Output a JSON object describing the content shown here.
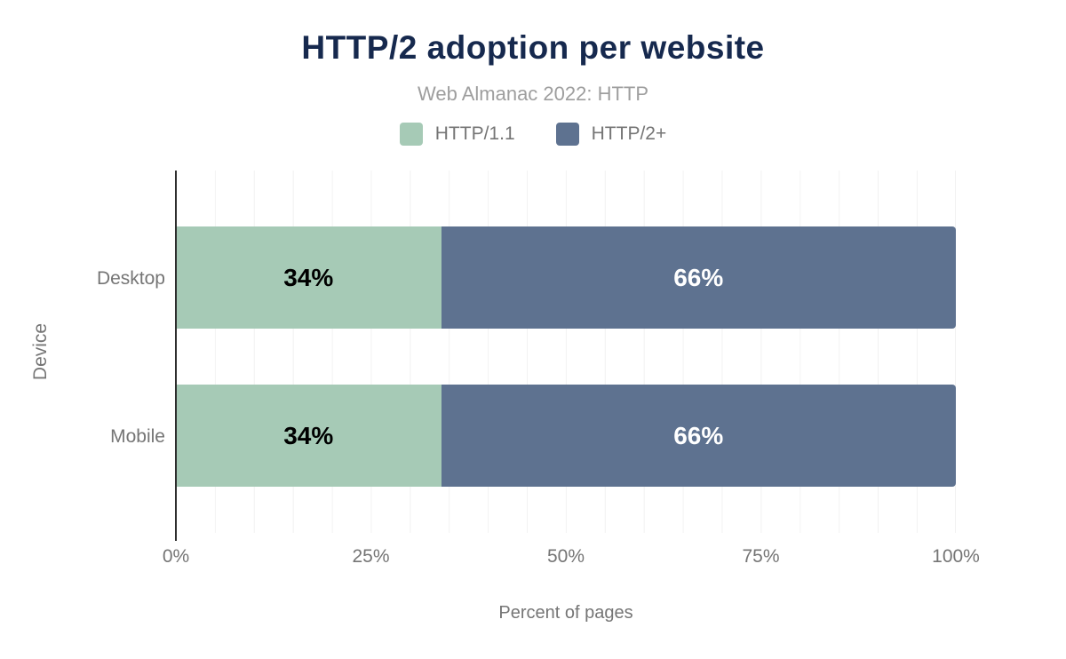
{
  "chart_data": {
    "type": "bar",
    "orientation": "horizontal",
    "stacked": true,
    "title": "HTTP/2 adoption per website",
    "subtitle": "Web Almanac 2022: HTTP",
    "categories": [
      "Desktop",
      "Mobile"
    ],
    "series": [
      {
        "name": "HTTP/1.1",
        "color": "#a6cab6",
        "label_color": "#000000",
        "values": [
          34,
          34
        ]
      },
      {
        "name": "HTTP/2+",
        "color": "#5e7290",
        "label_color": "#ffffff",
        "values": [
          66,
          66
        ]
      }
    ],
    "value_label_suffix": "%",
    "xlabel": "Percent of pages",
    "ylabel": "Device",
    "x_ticks": [
      "0%",
      "25%",
      "50%",
      "75%",
      "100%"
    ],
    "xlim": [
      0,
      100
    ],
    "grid": "vertical minor gridlines every 5%",
    "legend_position": "top-center"
  },
  "colors": {
    "title": "#16294e",
    "subtitle": "#9e9e9e",
    "axis_text": "#757575",
    "axis_line": "#2e2e2e",
    "gridline": "#f2f2f2",
    "background": "#ffffff"
  }
}
